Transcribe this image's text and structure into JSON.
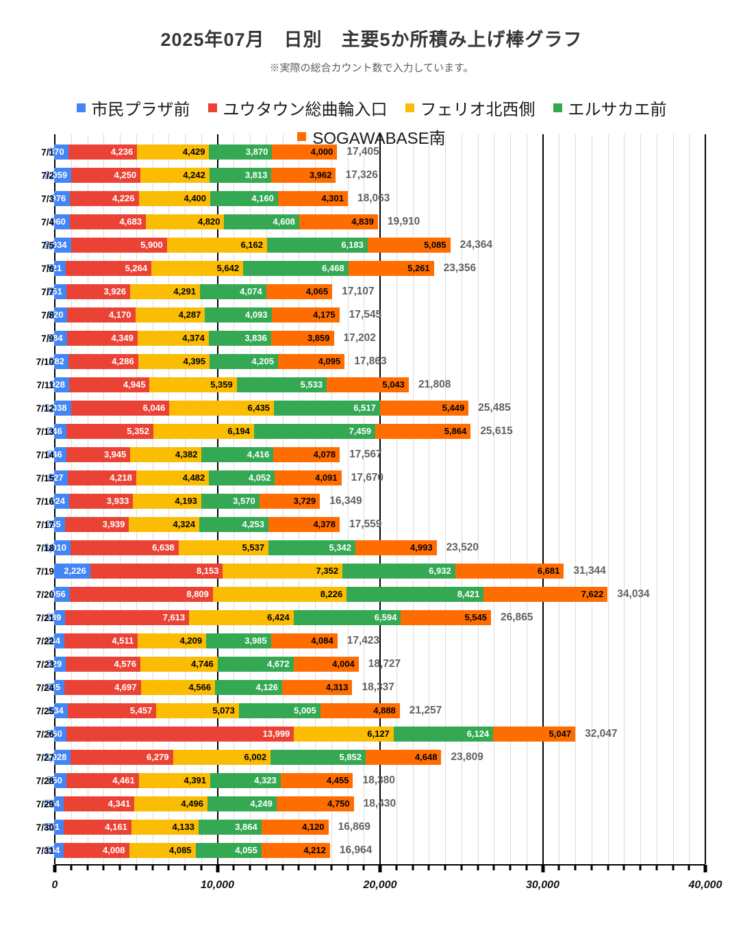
{
  "header": {
    "title": "2025年07月　日別　主要5か所積み上げ棒グラフ",
    "subtitle": "※実際の総合カウント数で入力しています。"
  },
  "chart_data": {
    "type": "bar",
    "orientation": "horizontal",
    "stacked": true,
    "title": "2025年07月　日別　主要5か所積み上げ棒グラフ",
    "subtitle": "※実際の総合カウント数で入力しています。",
    "legend_position": "top",
    "grid": true,
    "xlim": [
      0,
      40000
    ],
    "major_grid_step": 10000,
    "minor_grid_step": 1000,
    "x_ticks": [
      "0",
      "10,000",
      "20,000",
      "30,000",
      "40,000"
    ],
    "categories": [
      "7/1",
      "7/2",
      "7/3",
      "7/4",
      "7/5",
      "7/6",
      "7/7",
      "7/8",
      "7/9",
      "7/10",
      "7/11",
      "7/12",
      "7/13",
      "7/14",
      "7/15",
      "7/16",
      "7/17",
      "7/18",
      "7/19",
      "7/20",
      "7/21",
      "7/22",
      "7/23",
      "7/24",
      "7/25",
      "7/26",
      "7/27",
      "7/28",
      "7/29",
      "7/30",
      "7/31"
    ],
    "series": [
      {
        "name": "市民プラザ前",
        "color": "#4285F4",
        "label_color": "#ffffff",
        "values": [
          870,
          1059,
          976,
          960,
          1034,
          721,
          751,
          820,
          784,
          882,
          928,
          1038,
          746,
          746,
          827,
          924,
          665,
          1010,
          2226,
          956,
          689,
          634,
          729,
          635,
          834,
          750,
          1028,
          750,
          594,
          591,
          604
        ]
      },
      {
        "name": "ユウタウン総曲輪入口",
        "color": "#EA4335",
        "label_color": "#ffffff",
        "values": [
          4236,
          4250,
          4226,
          4683,
          5900,
          5264,
          3926,
          4170,
          4349,
          4286,
          4945,
          6046,
          5352,
          3945,
          4218,
          3933,
          3939,
          6638,
          8153,
          8809,
          7613,
          4511,
          4576,
          4697,
          5457,
          13999,
          6279,
          4461,
          4341,
          4161,
          4008
        ]
      },
      {
        "name": "フェリオ北西側",
        "color": "#FBBC04",
        "label_color": "#000000",
        "values": [
          4429,
          4242,
          4400,
          4820,
          6162,
          5642,
          4291,
          4287,
          4374,
          4395,
          5359,
          6435,
          6194,
          4382,
          4482,
          4193,
          4324,
          5537,
          7352,
          8226,
          6424,
          4209,
          4746,
          4566,
          5073,
          6127,
          6002,
          4391,
          4496,
          4133,
          4085
        ]
      },
      {
        "name": "エルサカエ前",
        "color": "#34A853",
        "label_color": "#ffffff",
        "values": [
          3870,
          3813,
          4160,
          4608,
          6183,
          6468,
          4074,
          4093,
          3836,
          4205,
          5533,
          6517,
          7459,
          4416,
          4052,
          3570,
          4253,
          5342,
          6932,
          8421,
          6594,
          3985,
          4672,
          4126,
          5005,
          6124,
          5852,
          4323,
          4249,
          3864,
          4055
        ]
      },
      {
        "name": "SOGAWABASE南",
        "color": "#FF6D01",
        "label_color": "#000000",
        "values": [
          4000,
          3962,
          4301,
          4839,
          5085,
          5261,
          4065,
          4175,
          3859,
          4095,
          5043,
          5449,
          5864,
          4078,
          4091,
          3729,
          4378,
          4993,
          6681,
          7622,
          5545,
          4084,
          4004,
          4313,
          4888,
          5047,
          4648,
          4455,
          4750,
          4120,
          4212
        ]
      }
    ],
    "totals": [
      17405,
      17326,
      18063,
      19910,
      24364,
      23356,
      17107,
      17545,
      17202,
      17863,
      21808,
      25485,
      25615,
      17567,
      17670,
      16349,
      17559,
      23520,
      31344,
      34034,
      26865,
      17423,
      18727,
      18337,
      21257,
      32047,
      23809,
      18380,
      18430,
      16869,
      16964
    ],
    "total_label_color": "#616161"
  }
}
